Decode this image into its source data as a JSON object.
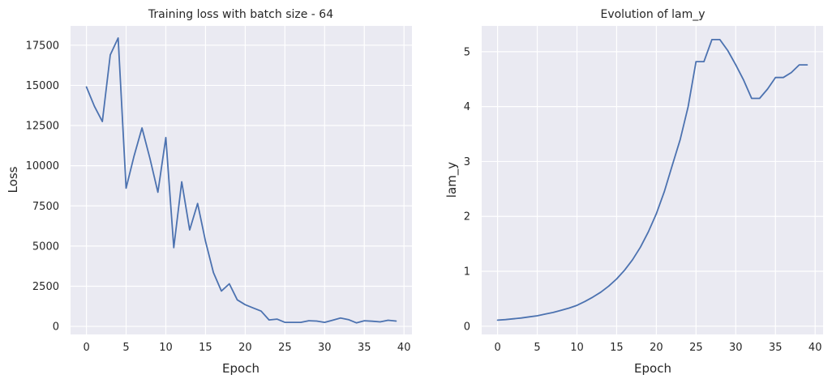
{
  "chart_data": [
    {
      "type": "line",
      "title": "Training loss with batch size - 64",
      "xlabel": "Epoch",
      "ylabel": "Loss",
      "xlim": [
        -2,
        41
      ],
      "ylim": [
        -500,
        18700
      ],
      "xticks": [
        0,
        5,
        10,
        15,
        20,
        25,
        30,
        35,
        40
      ],
      "yticks": [
        0,
        2500,
        5000,
        7500,
        10000,
        12500,
        15000,
        17500
      ],
      "grid": true,
      "color": "#4c72b0",
      "x": [
        0,
        1,
        2,
        3,
        4,
        5,
        6,
        7,
        8,
        9,
        10,
        11,
        12,
        13,
        14,
        15,
        16,
        17,
        18,
        19,
        20,
        21,
        22,
        23,
        24,
        25,
        26,
        27,
        28,
        29,
        30,
        31,
        32,
        33,
        34,
        35,
        36,
        37,
        38,
        39
      ],
      "y": [
        14900,
        13700,
        12750,
        16900,
        17950,
        8600,
        10600,
        12350,
        10450,
        8350,
        11750,
        4900,
        9000,
        6000,
        7650,
        5300,
        3350,
        2200,
        2650,
        1650,
        1350,
        1150,
        950,
        400,
        450,
        250,
        250,
        250,
        350,
        330,
        250,
        380,
        520,
        420,
        220,
        350,
        320,
        280,
        380,
        330
      ]
    },
    {
      "type": "line",
      "title": "Evolution of lam_y",
      "xlabel": "Epoch",
      "ylabel": "lam_y",
      "xlim": [
        -2,
        41
      ],
      "ylim": [
        -0.15,
        5.47
      ],
      "xticks": [
        0,
        5,
        10,
        15,
        20,
        25,
        30,
        35,
        40
      ],
      "yticks": [
        0,
        1,
        2,
        3,
        4,
        5
      ],
      "grid": true,
      "color": "#4c72b0",
      "x": [
        0,
        1,
        2,
        3,
        4,
        5,
        6,
        7,
        8,
        9,
        10,
        11,
        12,
        13,
        14,
        15,
        16,
        17,
        18,
        19,
        20,
        21,
        22,
        23,
        24,
        25,
        26,
        27,
        28,
        29,
        30,
        31,
        32,
        33,
        34,
        35,
        36,
        37,
        38,
        39
      ],
      "y": [
        0.11,
        0.12,
        0.135,
        0.15,
        0.17,
        0.19,
        0.22,
        0.25,
        0.29,
        0.33,
        0.38,
        0.45,
        0.53,
        0.62,
        0.73,
        0.86,
        1.02,
        1.21,
        1.44,
        1.72,
        2.05,
        2.45,
        2.93,
        3.4,
        4.0,
        4.82,
        4.82,
        5.22,
        5.22,
        5.02,
        4.76,
        4.48,
        4.15,
        4.15,
        4.32,
        4.53,
        4.53,
        4.62,
        4.76,
        4.76
      ]
    }
  ]
}
